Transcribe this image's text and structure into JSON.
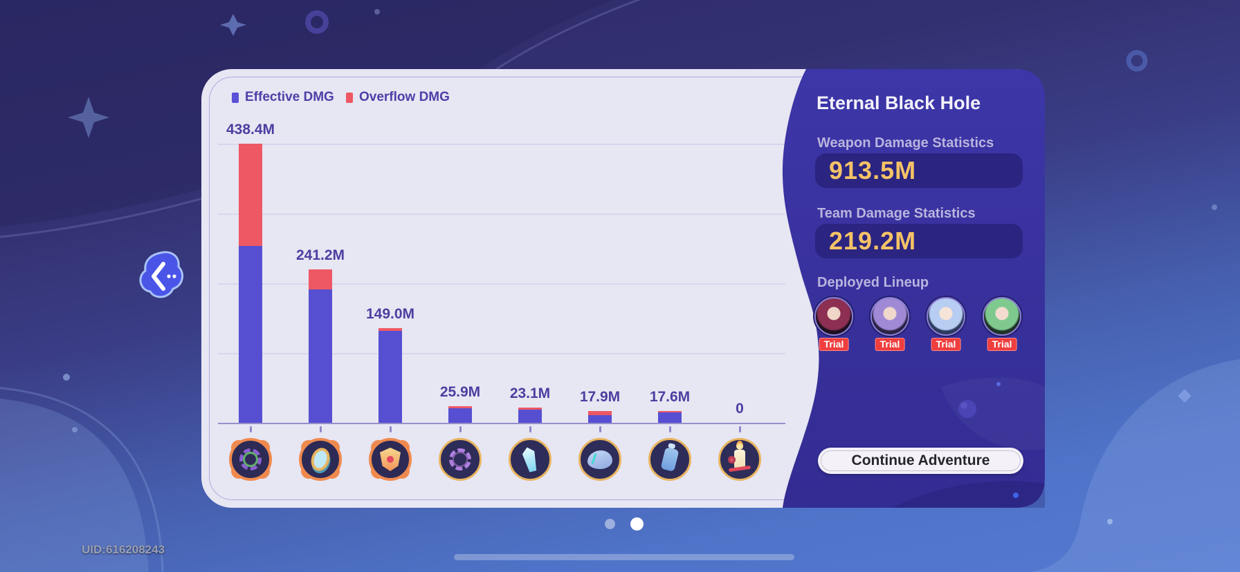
{
  "legend": [
    {
      "label": "Effective DMG",
      "color": "#5a50d8"
    },
    {
      "label": "Overflow DMG",
      "color": "#ee5864"
    }
  ],
  "chart_data": {
    "type": "bar",
    "stacked": true,
    "unit": "M",
    "ylim": [
      0,
      438.4
    ],
    "grid": true,
    "categories": [
      "boss-wreath",
      "boss-mirror",
      "boss-shield",
      "thorn-ring",
      "crystal-sword",
      "organ",
      "canister",
      "candle"
    ],
    "category_kinds": [
      "boss",
      "boss",
      "boss",
      "plain",
      "plain",
      "plain",
      "plain",
      "plain"
    ],
    "series": [
      {
        "name": "Effective DMG",
        "color": "#564fd2",
        "values": [
          277.9,
          209.7,
          144.7,
          22.7,
          20.3,
          11.4,
          15.8,
          0
        ]
      },
      {
        "name": "Overflow DMG",
        "color": "#ee5864",
        "values": [
          160.5,
          31.5,
          4.3,
          3.2,
          2.8,
          6.5,
          1.8,
          0
        ]
      }
    ],
    "total_labels": [
      "438.4M",
      "241.2M",
      "149.0M",
      "25.9M",
      "23.1M",
      "17.9M",
      "17.6M",
      "0"
    ]
  },
  "right_panel": {
    "title": "Eternal Black Hole",
    "weapon_stats_label": "Weapon Damage Statistics",
    "weapon_stats_value": "913.5M",
    "team_stats_label": "Team Damage Statistics",
    "team_stats_value": "219.2M",
    "lineup_label": "Deployed Lineup",
    "lineup": [
      {
        "name": "kafka",
        "badge": "Trial",
        "hair": "#8c2f52",
        "bg": "#1d1020",
        "face": "#f0d6c8"
      },
      {
        "name": "black-swan",
        "badge": "Trial",
        "hair": "#a08ad6",
        "bg": "#2a2344",
        "face": "#f0d8cc"
      },
      {
        "name": "robin",
        "badge": "Trial",
        "hair": "#b8cdf2",
        "bg": "#2c3a5e",
        "face": "#f6e4d8"
      },
      {
        "name": "huohuo",
        "badge": "Trial",
        "hair": "#7fc98f",
        "bg": "#1f3328",
        "face": "#f4ddd0"
      }
    ],
    "continue_button": "Continue Adventure"
  },
  "footer": {
    "uid": "UID:616208243",
    "dots": [
      {
        "active": false
      },
      {
        "active": true
      }
    ]
  }
}
